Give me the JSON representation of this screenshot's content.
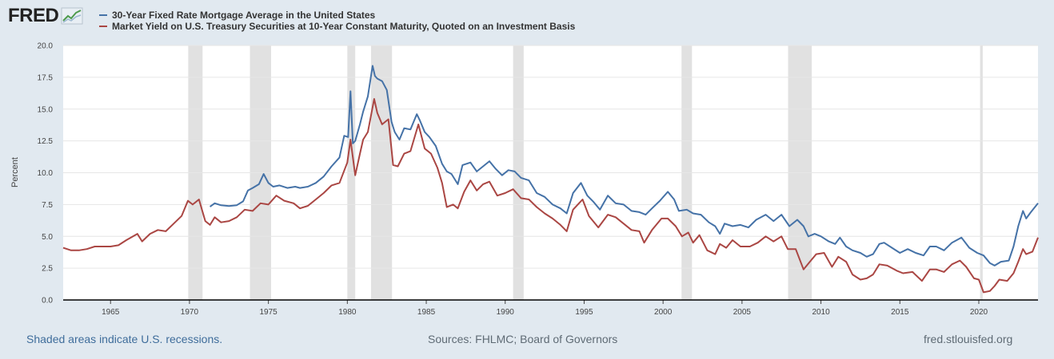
{
  "header": {
    "logo_text": "FRED",
    "logo_icon": "trend-line-icon"
  },
  "footer": {
    "recession_note": "Shaded areas indicate U.S. recessions.",
    "sources": "Sources: FHLMC; Board of Governors",
    "site": "fred.stlouisfed.org"
  },
  "colors": {
    "mortgage": "#4572a7",
    "treasury": "#aa4643",
    "recession": "#e1e1e1",
    "grid": "#e6e6e6",
    "plot_bg": "#ffffff",
    "page_bg": "#e1e9f0"
  },
  "chart_data": {
    "type": "line",
    "title": "",
    "xlabel": "",
    "ylabel": "Percent",
    "xlim": [
      1962.0,
      2023.75
    ],
    "ylim": [
      0,
      20
    ],
    "yticks": [
      0.0,
      2.5,
      5.0,
      7.5,
      10.0,
      12.5,
      15.0,
      17.5,
      20.0
    ],
    "ytick_labels": [
      "0.0",
      "2.5",
      "5.0",
      "7.5",
      "10.0",
      "12.5",
      "15.0",
      "17.5",
      "20.0"
    ],
    "xticks": [
      1965,
      1970,
      1975,
      1980,
      1985,
      1990,
      1995,
      2000,
      2005,
      2010,
      2015,
      2020
    ],
    "xtick_labels": [
      "1965",
      "1970",
      "1975",
      "1980",
      "1985",
      "1990",
      "1995",
      "2000",
      "2005",
      "2010",
      "2015",
      "2020"
    ],
    "recessions": [
      [
        1969.92,
        1970.83
      ],
      [
        1973.83,
        1975.17
      ],
      [
        1980.0,
        1980.5
      ],
      [
        1981.5,
        1982.83
      ],
      [
        1990.5,
        1991.17
      ],
      [
        2001.17,
        2001.83
      ],
      [
        2007.92,
        2009.42
      ],
      [
        2020.08,
        2020.25
      ]
    ],
    "series": [
      {
        "name": "30-Year Fixed Rate Mortgage Average in the United States",
        "x": [
          1971.3,
          1971.6,
          1972.0,
          1972.5,
          1973.0,
          1973.4,
          1973.7,
          1974.0,
          1974.4,
          1974.7,
          1975.0,
          1975.3,
          1975.7,
          1976.2,
          1976.7,
          1977.0,
          1977.5,
          1978.0,
          1978.5,
          1979.0,
          1979.5,
          1979.8,
          1980.05,
          1980.2,
          1980.35,
          1980.5,
          1980.8,
          1981.0,
          1981.3,
          1981.6,
          1981.75,
          1981.9,
          1982.2,
          1982.5,
          1982.8,
          1983.0,
          1983.3,
          1983.6,
          1984.0,
          1984.4,
          1984.6,
          1984.9,
          1985.2,
          1985.6,
          1986.0,
          1986.3,
          1986.6,
          1987.0,
          1987.3,
          1987.8,
          1988.2,
          1988.6,
          1989.0,
          1989.4,
          1989.8,
          1990.2,
          1990.6,
          1991.0,
          1991.5,
          1992.0,
          1992.5,
          1993.0,
          1993.5,
          1993.9,
          1994.3,
          1994.8,
          1995.2,
          1995.6,
          1996.0,
          1996.5,
          1997.0,
          1997.5,
          1998.0,
          1998.5,
          1998.9,
          1999.3,
          1999.8,
          2000.3,
          2000.7,
          2001.0,
          2001.5,
          2001.9,
          2002.4,
          2002.9,
          2003.3,
          2003.6,
          2003.9,
          2004.4,
          2004.9,
          2005.4,
          2005.9,
          2006.5,
          2007.0,
          2007.5,
          2008.0,
          2008.5,
          2008.9,
          2009.2,
          2009.6,
          2010.0,
          2010.5,
          2010.9,
          2011.2,
          2011.6,
          2012.0,
          2012.5,
          2012.9,
          2013.3,
          2013.7,
          2014.0,
          2014.5,
          2015.0,
          2015.5,
          2016.0,
          2016.5,
          2016.9,
          2017.3,
          2017.8,
          2018.3,
          2018.9,
          2019.4,
          2019.9,
          2020.3,
          2020.7,
          2021.0,
          2021.4,
          2021.9,
          2022.2,
          2022.5,
          2022.8,
          2023.0,
          2023.3,
          2023.75
        ],
        "values": [
          7.33,
          7.6,
          7.44,
          7.38,
          7.45,
          7.75,
          8.6,
          8.8,
          9.1,
          9.9,
          9.2,
          8.9,
          9.0,
          8.8,
          8.9,
          8.8,
          8.9,
          9.2,
          9.7,
          10.5,
          11.2,
          12.9,
          12.8,
          16.4,
          12.3,
          12.5,
          13.8,
          14.8,
          16.0,
          18.4,
          17.6,
          17.4,
          17.2,
          16.5,
          14.0,
          13.2,
          12.6,
          13.5,
          13.4,
          14.6,
          14.1,
          13.2,
          12.8,
          12.1,
          10.7,
          10.1,
          9.9,
          9.1,
          10.6,
          10.8,
          10.1,
          10.5,
          10.9,
          10.3,
          9.8,
          10.2,
          10.1,
          9.6,
          9.4,
          8.4,
          8.1,
          7.5,
          7.2,
          6.8,
          8.4,
          9.2,
          8.2,
          7.7,
          7.1,
          8.2,
          7.6,
          7.5,
          7.0,
          6.9,
          6.7,
          7.2,
          7.8,
          8.5,
          7.9,
          7.0,
          7.1,
          6.8,
          6.7,
          6.1,
          5.8,
          5.2,
          6.0,
          5.8,
          5.9,
          5.7,
          6.3,
          6.7,
          6.2,
          6.7,
          5.8,
          6.3,
          5.8,
          5.0,
          5.2,
          5.0,
          4.6,
          4.4,
          4.9,
          4.2,
          3.9,
          3.7,
          3.4,
          3.6,
          4.4,
          4.5,
          4.1,
          3.7,
          4.0,
          3.7,
          3.5,
          4.2,
          4.2,
          3.9,
          4.5,
          4.9,
          4.1,
          3.7,
          3.5,
          2.9,
          2.7,
          3.0,
          3.1,
          4.2,
          5.8,
          7.0,
          6.4,
          6.9,
          7.6
        ]
      },
      {
        "name": "Market Yield on U.S. Treasury Securities at 10-Year Constant Maturity, Quoted on an Investment Basis",
        "x": [
          1962.0,
          1962.5,
          1963.0,
          1963.5,
          1964.0,
          1964.5,
          1965.0,
          1965.5,
          1966.0,
          1966.7,
          1967.0,
          1967.5,
          1968.0,
          1968.5,
          1969.0,
          1969.5,
          1969.9,
          1970.2,
          1970.6,
          1971.0,
          1971.3,
          1971.6,
          1972.0,
          1972.5,
          1973.0,
          1973.5,
          1974.0,
          1974.5,
          1975.0,
          1975.5,
          1976.0,
          1976.6,
          1977.0,
          1977.5,
          1978.0,
          1978.5,
          1979.0,
          1979.5,
          1980.0,
          1980.2,
          1980.5,
          1980.8,
          1981.0,
          1981.3,
          1981.7,
          1981.9,
          1982.2,
          1982.6,
          1982.9,
          1983.2,
          1983.6,
          1984.0,
          1984.5,
          1984.9,
          1985.3,
          1985.7,
          1986.0,
          1986.3,
          1986.7,
          1987.0,
          1987.4,
          1987.8,
          1988.2,
          1988.6,
          1989.0,
          1989.5,
          1990.0,
          1990.5,
          1991.0,
          1991.5,
          1992.0,
          1992.5,
          1993.0,
          1993.5,
          1993.9,
          1994.3,
          1994.9,
          1995.3,
          1995.9,
          1996.5,
          1997.0,
          1997.5,
          1998.0,
          1998.5,
          1998.8,
          1999.3,
          1999.9,
          2000.3,
          2000.8,
          2001.2,
          2001.6,
          2001.9,
          2002.3,
          2002.8,
          2003.3,
          2003.6,
          2004.0,
          2004.4,
          2004.9,
          2005.5,
          2006.0,
          2006.5,
          2007.0,
          2007.5,
          2007.9,
          2008.4,
          2008.9,
          2009.3,
          2009.7,
          2010.2,
          2010.7,
          2011.1,
          2011.6,
          2012.0,
          2012.5,
          2012.9,
          2013.3,
          2013.7,
          2014.2,
          2014.8,
          2015.2,
          2015.8,
          2016.4,
          2016.9,
          2017.3,
          2017.8,
          2018.3,
          2018.8,
          2019.2,
          2019.7,
          2020.0,
          2020.3,
          2020.7,
          2021.0,
          2021.3,
          2021.8,
          2022.2,
          2022.5,
          2022.8,
          2023.0,
          2023.4,
          2023.75
        ],
        "values": [
          4.1,
          3.9,
          3.9,
          4.0,
          4.2,
          4.2,
          4.2,
          4.3,
          4.7,
          5.2,
          4.6,
          5.2,
          5.5,
          5.4,
          6.0,
          6.6,
          7.8,
          7.5,
          7.9,
          6.2,
          5.9,
          6.5,
          6.1,
          6.2,
          6.5,
          7.1,
          7.0,
          7.6,
          7.5,
          8.2,
          7.8,
          7.6,
          7.2,
          7.4,
          7.9,
          8.4,
          9.0,
          9.2,
          10.8,
          12.6,
          9.8,
          11.5,
          12.6,
          13.2,
          15.8,
          14.7,
          13.8,
          14.2,
          10.6,
          10.5,
          11.5,
          11.7,
          13.8,
          11.9,
          11.5,
          10.4,
          9.2,
          7.3,
          7.5,
          7.2,
          8.5,
          9.4,
          8.6,
          9.1,
          9.3,
          8.2,
          8.4,
          8.7,
          8.0,
          7.9,
          7.3,
          6.8,
          6.4,
          5.9,
          5.4,
          7.1,
          7.9,
          6.6,
          5.7,
          6.7,
          6.5,
          6.0,
          5.5,
          5.4,
          4.5,
          5.5,
          6.4,
          6.4,
          5.8,
          5.0,
          5.3,
          4.5,
          5.1,
          3.9,
          3.6,
          4.4,
          4.1,
          4.7,
          4.2,
          4.2,
          4.5,
          5.0,
          4.6,
          5.0,
          4.0,
          4.0,
          2.4,
          3.0,
          3.6,
          3.7,
          2.6,
          3.4,
          3.0,
          2.0,
          1.6,
          1.7,
          2.0,
          2.8,
          2.7,
          2.3,
          2.1,
          2.2,
          1.5,
          2.4,
          2.4,
          2.2,
          2.8,
          3.1,
          2.6,
          1.7,
          1.6,
          0.6,
          0.7,
          1.1,
          1.6,
          1.5,
          2.1,
          3.0,
          4.0,
          3.6,
          3.8,
          4.9
        ]
      }
    ]
  }
}
